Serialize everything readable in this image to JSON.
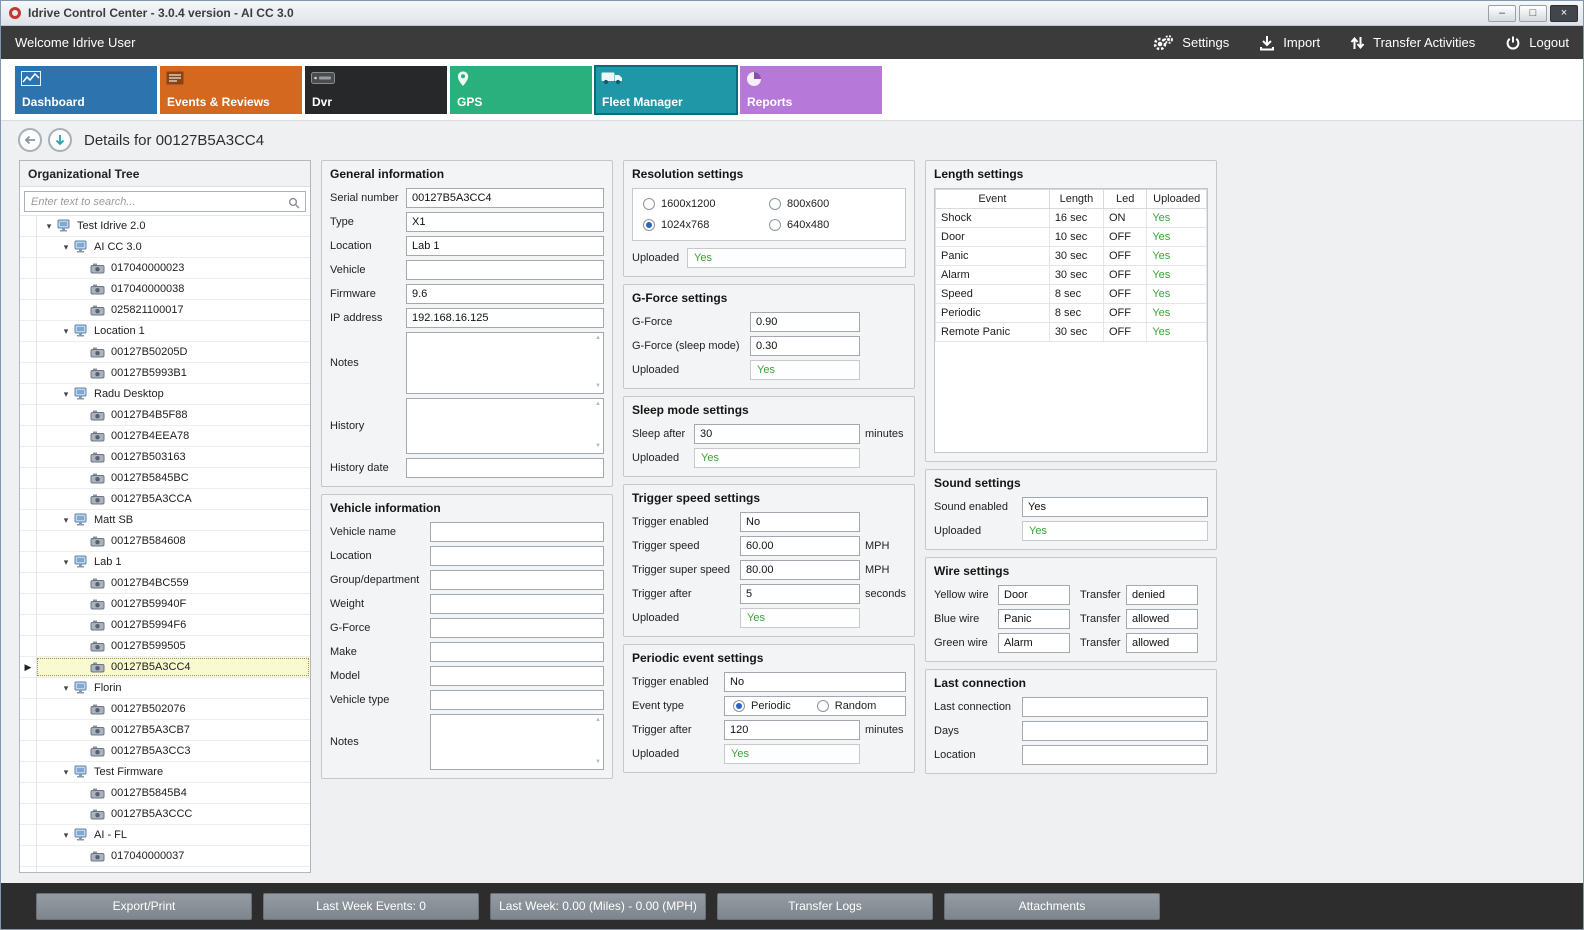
{
  "window": {
    "title": "Idrive Control Center - 3.0.4 version - AI CC 3.0",
    "controls": [
      {
        "id": "minimize",
        "glyph": "–"
      },
      {
        "id": "maximize",
        "glyph": "□"
      },
      {
        "id": "close",
        "glyph": "×"
      }
    ]
  },
  "topbar": {
    "welcome": "Welcome Idrive User",
    "actions": [
      {
        "id": "settings",
        "label": "Settings",
        "icon": "gears-icon"
      },
      {
        "id": "import",
        "label": "Import",
        "icon": "import-icon"
      },
      {
        "id": "transfer-activities",
        "label": "Transfer Activities",
        "icon": "transfer-icon"
      },
      {
        "id": "logout",
        "label": "Logout",
        "icon": "power-icon"
      }
    ]
  },
  "tabs": [
    {
      "id": "dashboard",
      "label": "Dashboard",
      "color": "#2d73ad",
      "icon": "chart-icon",
      "selected": false
    },
    {
      "id": "events-reviews",
      "label": "Events & Reviews",
      "color": "#d4681f",
      "icon": "list-icon",
      "selected": false
    },
    {
      "id": "dvr",
      "label": "Dvr",
      "color": "#26282a",
      "icon": "dvr-icon",
      "selected": false
    },
    {
      "id": "gps",
      "label": "GPS",
      "color": "#2ab07d",
      "icon": "pin-icon",
      "selected": false
    },
    {
      "id": "fleet-manager",
      "label": "Fleet Manager",
      "color": "#1f97a7",
      "icon": "truck-icon",
      "selected": true
    },
    {
      "id": "reports",
      "label": "Reports",
      "color": "#b678d9",
      "icon": "pie-icon",
      "selected": false
    }
  ],
  "details_header": {
    "title": "Details for 00127B5A3CC4"
  },
  "org_tree": {
    "title": "Organizational Tree",
    "search_placeholder": "Enter text to search...",
    "selected": "00127B5A3CC4",
    "items": [
      {
        "label": "Test Idrive 2.0",
        "type": "group",
        "depth": 0
      },
      {
        "label": "AI CC 3.0",
        "type": "group",
        "depth": 1
      },
      {
        "label": "017040000023",
        "type": "device",
        "depth": 2
      },
      {
        "label": "017040000038",
        "type": "device",
        "depth": 2
      },
      {
        "label": "025821100017",
        "type": "device",
        "depth": 2
      },
      {
        "label": "Location 1",
        "type": "group",
        "depth": 1
      },
      {
        "label": "00127B50205D",
        "type": "device",
        "depth": 2
      },
      {
        "label": "00127B5993B1",
        "type": "device",
        "depth": 2
      },
      {
        "label": "Radu Desktop",
        "type": "group",
        "depth": 1
      },
      {
        "label": "00127B4B5F88",
        "type": "device",
        "depth": 2
      },
      {
        "label": "00127B4EEA78",
        "type": "device",
        "depth": 2
      },
      {
        "label": "00127B503163",
        "type": "device",
        "depth": 2
      },
      {
        "label": "00127B5845BC",
        "type": "device",
        "depth": 2
      },
      {
        "label": "00127B5A3CCA",
        "type": "device",
        "depth": 2
      },
      {
        "label": "Matt SB",
        "type": "group",
        "depth": 1
      },
      {
        "label": "00127B584608",
        "type": "device",
        "depth": 2
      },
      {
        "label": "Lab 1",
        "type": "group",
        "depth": 1
      },
      {
        "label": "00127B4BC559",
        "type": "device",
        "depth": 2
      },
      {
        "label": "00127B59940F",
        "type": "device",
        "depth": 2
      },
      {
        "label": "00127B5994F6",
        "type": "device",
        "depth": 2
      },
      {
        "label": "00127B599505",
        "type": "device",
        "depth": 2
      },
      {
        "label": "00127B5A3CC4",
        "type": "device",
        "depth": 2,
        "selected": true
      },
      {
        "label": "Florin",
        "type": "group",
        "depth": 1
      },
      {
        "label": "00127B502076",
        "type": "device",
        "depth": 2
      },
      {
        "label": "00127B5A3CB7",
        "type": "device",
        "depth": 2
      },
      {
        "label": "00127B5A3CC3",
        "type": "device",
        "depth": 2
      },
      {
        "label": "Test Firmware",
        "type": "group",
        "depth": 1
      },
      {
        "label": "00127B5845B4",
        "type": "device",
        "depth": 2
      },
      {
        "label": "00127B5A3CCC",
        "type": "device",
        "depth": 2
      },
      {
        "label": "AI - FL",
        "type": "group",
        "depth": 1
      },
      {
        "label": "017040000037",
        "type": "device",
        "depth": 2
      }
    ]
  },
  "general_information": {
    "title": "General information",
    "fields": [
      {
        "label": "Serial number",
        "value": "00127B5A3CC4",
        "type": "text"
      },
      {
        "label": "Type",
        "value": "X1",
        "type": "text"
      },
      {
        "label": "Location",
        "value": "Lab 1",
        "type": "text"
      },
      {
        "label": "Vehicle",
        "value": "",
        "type": "text"
      },
      {
        "label": "Firmware",
        "value": "9.6",
        "type": "text"
      },
      {
        "label": "IP address",
        "value": "192.168.16.125",
        "type": "text"
      },
      {
        "label": "Notes",
        "value": "",
        "type": "textarea"
      },
      {
        "label": "History",
        "value": "",
        "type": "textarea"
      },
      {
        "label": "History date",
        "value": "",
        "type": "text"
      }
    ]
  },
  "vehicle_information": {
    "title": "Vehicle information",
    "fields": [
      {
        "label": "Vehicle name",
        "value": "",
        "type": "text"
      },
      {
        "label": "Location",
        "value": "",
        "type": "text"
      },
      {
        "label": "Group/department",
        "value": "",
        "type": "text"
      },
      {
        "label": "Weight",
        "value": "",
        "type": "text"
      },
      {
        "label": "G-Force",
        "value": "",
        "type": "text"
      },
      {
        "label": "Make",
        "value": "",
        "type": "text"
      },
      {
        "label": "Model",
        "value": "",
        "type": "text"
      },
      {
        "label": "Vehicle type",
        "value": "",
        "type": "text"
      },
      {
        "label": "Notes",
        "value": "",
        "type": "textarea"
      }
    ]
  },
  "resolution_settings": {
    "title": "Resolution settings",
    "options": [
      {
        "label": "1600x1200",
        "selected": false
      },
      {
        "label": "800x600",
        "selected": false
      },
      {
        "label": "1024x768",
        "selected": true
      },
      {
        "label": "640x480",
        "selected": false
      }
    ],
    "uploaded_label": "Uploaded",
    "uploaded_value": "Yes"
  },
  "g_force_settings": {
    "title": "G-Force settings",
    "fields": [
      {
        "label": "G-Force",
        "value": "0.90",
        "type": "text"
      },
      {
        "label": "G-Force (sleep mode)",
        "value": "0.30",
        "type": "text"
      },
      {
        "label": "Uploaded",
        "value": "Yes",
        "type": "uploaded"
      }
    ]
  },
  "sleep_mode_settings": {
    "title": "Sleep mode settings",
    "fields": [
      {
        "label": "Sleep after",
        "value": "30",
        "type": "text",
        "suffix": "minutes"
      },
      {
        "label": "Uploaded",
        "value": "Yes",
        "type": "uploaded"
      }
    ]
  },
  "trigger_speed_settings": {
    "title": "Trigger speed settings",
    "fields": [
      {
        "label": "Trigger enabled",
        "value": "No",
        "type": "text"
      },
      {
        "label": "Trigger speed",
        "value": "60.00",
        "type": "text",
        "suffix": "MPH"
      },
      {
        "label": "Trigger super speed",
        "value": "80.00",
        "type": "text",
        "suffix": "MPH"
      },
      {
        "label": "Trigger after",
        "value": "5",
        "type": "text",
        "suffix": "seconds"
      },
      {
        "label": "Uploaded",
        "value": "Yes",
        "type": "uploaded"
      }
    ]
  },
  "periodic_event_settings": {
    "title": "Periodic event settings",
    "trigger_enabled": {
      "label": "Trigger enabled",
      "value": "No"
    },
    "event_type": {
      "label": "Event type",
      "options": [
        {
          "label": "Periodic",
          "selected": true
        },
        {
          "label": "Random",
          "selected": false
        }
      ]
    },
    "trigger_after": {
      "label": "Trigger after",
      "value": "120",
      "suffix": "minutes"
    },
    "uploaded": {
      "label": "Uploaded",
      "value": "Yes"
    }
  },
  "length_settings": {
    "title": "Length settings",
    "columns": [
      "Event",
      "Length",
      "Led",
      "Uploaded"
    ],
    "rows": [
      [
        "Shock",
        "16 sec",
        "ON",
        "Yes"
      ],
      [
        "Door",
        "10 sec",
        "OFF",
        "Yes"
      ],
      [
        "Panic",
        "30 sec",
        "OFF",
        "Yes"
      ],
      [
        "Alarm",
        "30 sec",
        "OFF",
        "Yes"
      ],
      [
        "Speed",
        "8 sec",
        "OFF",
        "Yes"
      ],
      [
        "Periodic",
        "8 sec",
        "OFF",
        "Yes"
      ],
      [
        "Remote Panic",
        "30 sec",
        "OFF",
        "Yes"
      ]
    ]
  },
  "sound_settings": {
    "title": "Sound settings",
    "fields": [
      {
        "label": "Sound enabled",
        "value": "Yes",
        "type": "text"
      },
      {
        "label": "Uploaded",
        "value": "Yes",
        "type": "uploaded"
      }
    ]
  },
  "wire_settings": {
    "title": "Wire settings",
    "rows": [
      {
        "wire_label": "Yellow wire",
        "wire_value": "Door",
        "transfer_label": "Transfer",
        "transfer_value": "denied"
      },
      {
        "wire_label": "Blue wire",
        "wire_value": "Panic",
        "transfer_label": "Transfer",
        "transfer_value": "allowed"
      },
      {
        "wire_label": "Green wire",
        "wire_value": "Alarm",
        "transfer_label": "Transfer",
        "transfer_value": "allowed"
      }
    ]
  },
  "last_connection": {
    "title": "Last connection",
    "fields": [
      {
        "label": "Last connection",
        "value": "",
        "type": "text"
      },
      {
        "label": "Days",
        "value": "",
        "type": "text"
      },
      {
        "label": "Location",
        "value": "",
        "type": "text"
      }
    ]
  },
  "footer": {
    "buttons": [
      "Export/Print",
      "Last Week Events: 0",
      "Last Week: 0.00 (Miles) - 0.00 (MPH)",
      "Transfer Logs",
      "Attachments"
    ]
  },
  "colors": {
    "uploaded_text": "#3aa33a",
    "selected_tab_border": "#0b6b7a",
    "topbar_bg": "#3b3b3b",
    "footer_bg": "#2d2d2d",
    "tree_selected_bg": "#fafad0"
  }
}
